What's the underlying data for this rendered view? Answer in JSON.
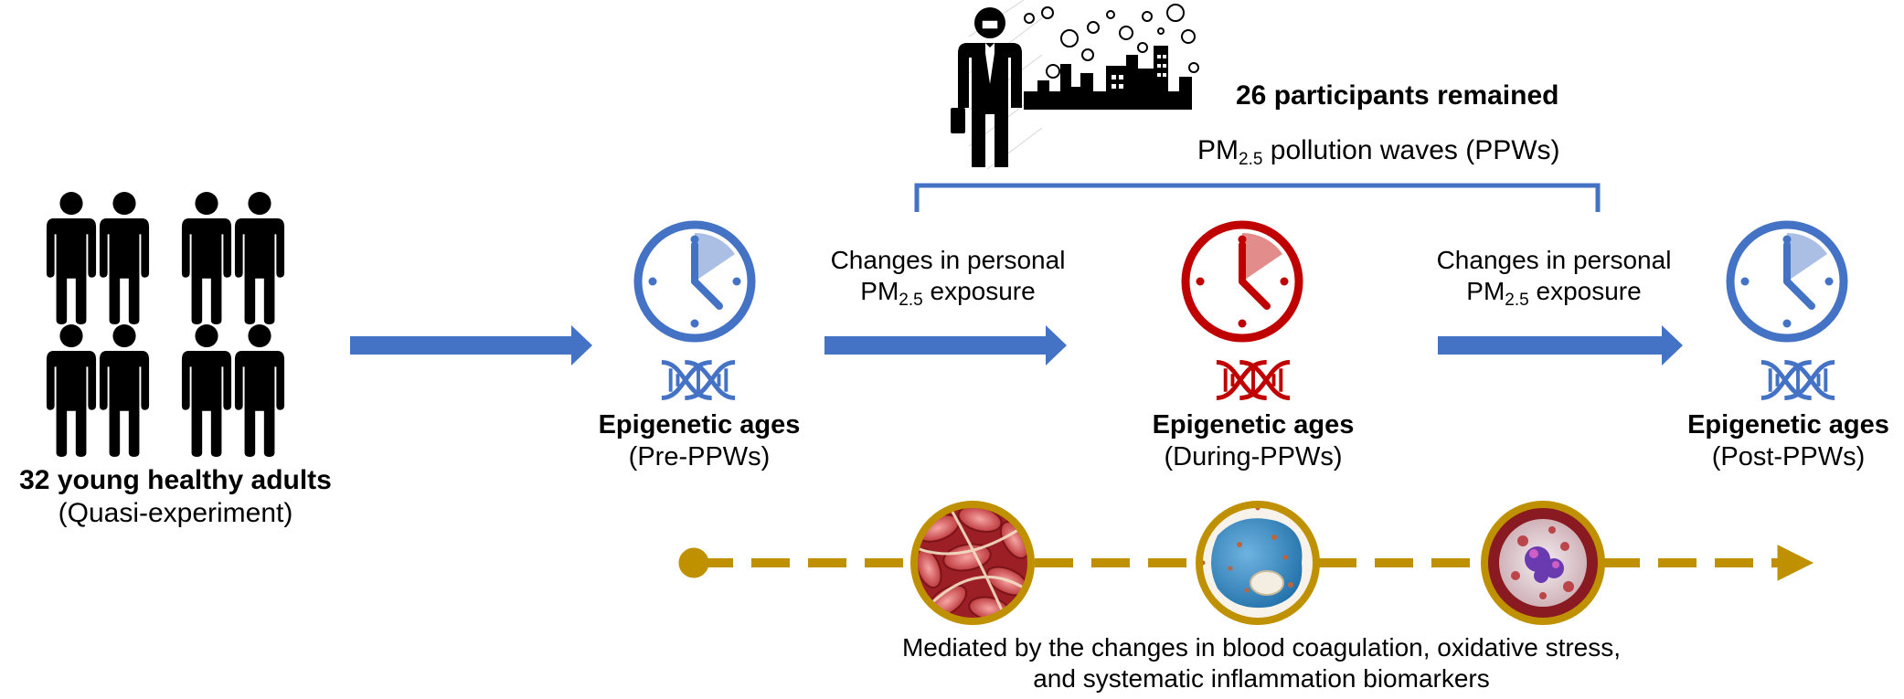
{
  "colors": {
    "blue": "#4472C4",
    "red": "#C00000",
    "gold": "#BF9000",
    "black": "#000000"
  },
  "cohort": {
    "title": "32 young healthy adults",
    "subtitle": "(Quasi-experiment)",
    "icon": "people-group-icon"
  },
  "exposure": {
    "participants": "26 participants remained",
    "pollution_prefix": "PM",
    "pollution_sub": "2.5",
    "pollution_suffix": " pollution waves (PPWs)",
    "icon": "polluted-city-commuter-icon"
  },
  "transitions": [
    {
      "line1": "Changes in personal",
      "pm": "PM",
      "pm_sub": "2.5",
      "rest": " exposure"
    },
    {
      "line1": "Changes in personal",
      "pm": "PM",
      "pm_sub": "2.5",
      "rest": " exposure"
    }
  ],
  "stages": [
    {
      "title": "Epigenetic ages",
      "subtitle": "(Pre-PPWs)",
      "color": "blue",
      "icons": [
        "clock-icon",
        "dna-icon"
      ]
    },
    {
      "title": "Epigenetic ages",
      "subtitle": "(During-PPWs)",
      "color": "red",
      "icons": [
        "clock-icon",
        "dna-icon"
      ]
    },
    {
      "title": "Epigenetic ages",
      "subtitle": "(Post-PPWs)",
      "color": "blue",
      "icons": [
        "clock-icon",
        "dna-icon"
      ]
    }
  ],
  "mediators": {
    "line1": "Mediated by the changes in blood coagulation, oxidative stress,",
    "line2": "and systematic inflammation biomarkers",
    "icons": [
      "blood-coagulation-icon",
      "oxidative-stress-cell-icon",
      "inflammation-cell-icon"
    ]
  }
}
